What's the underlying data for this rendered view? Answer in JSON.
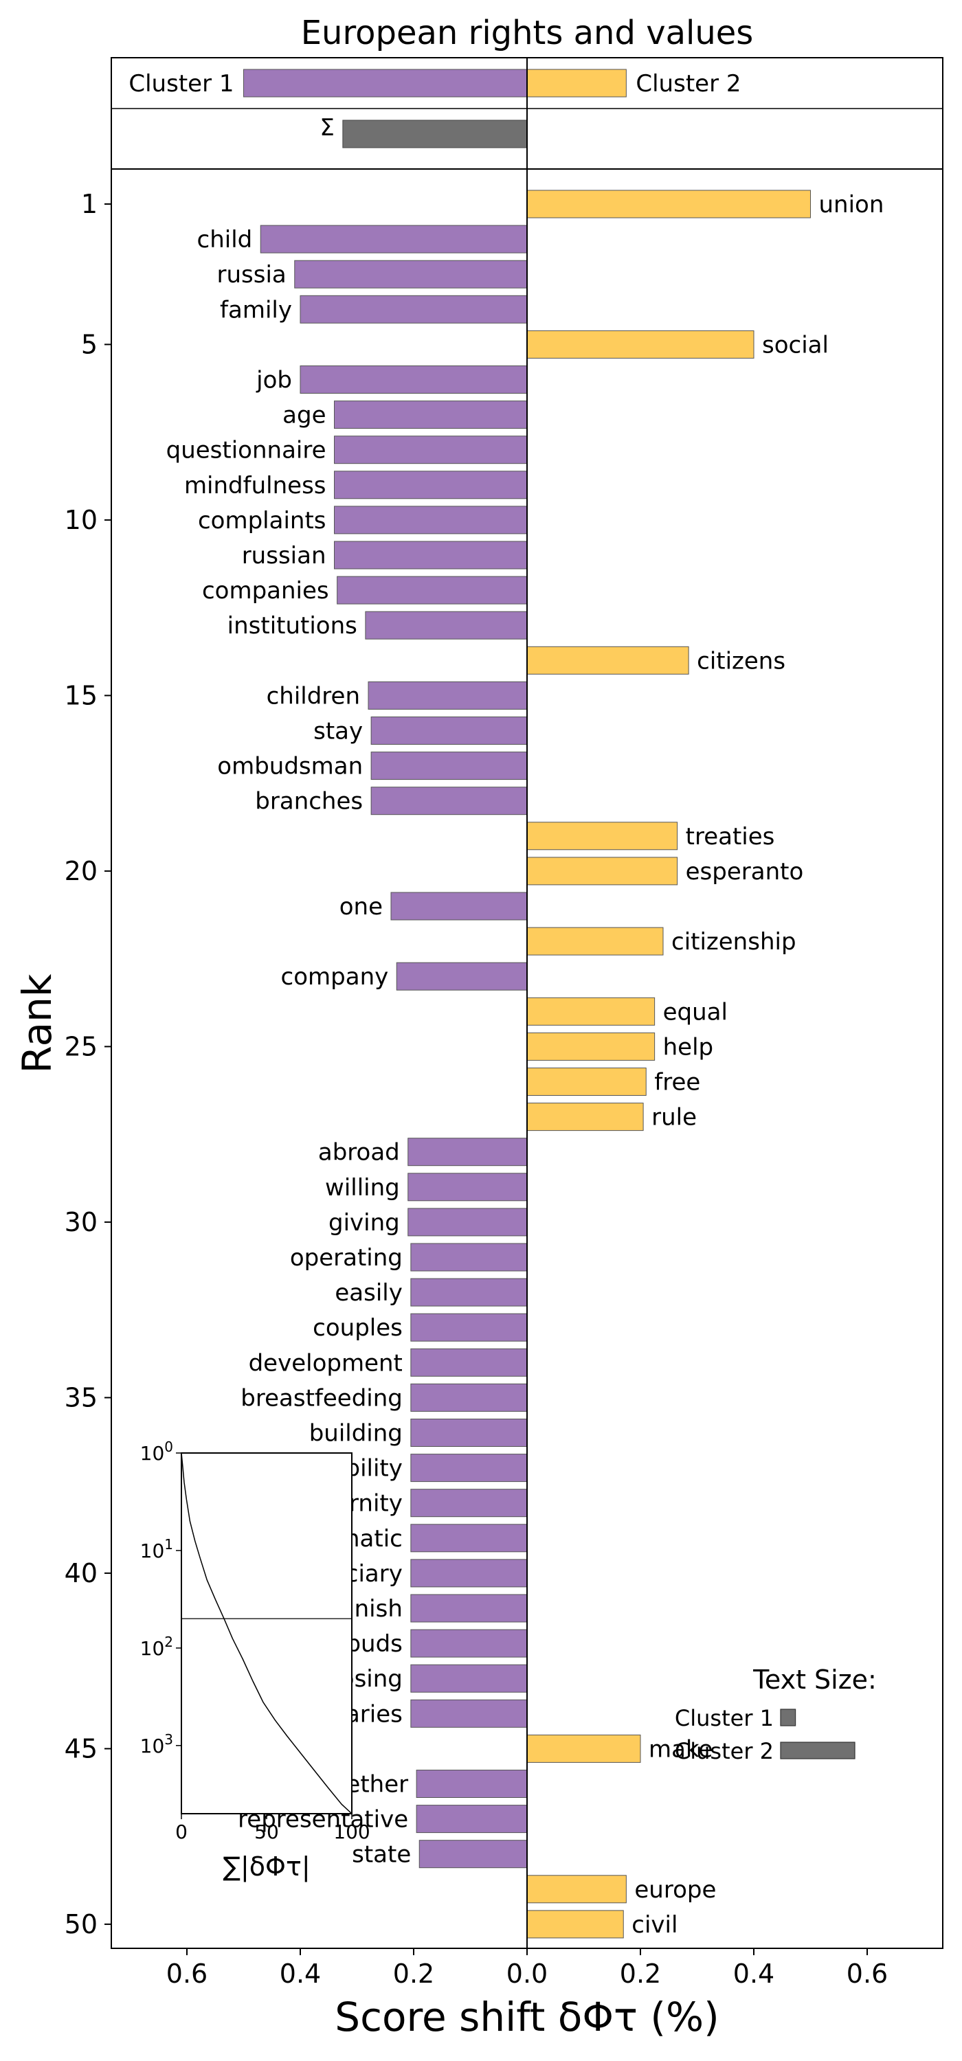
{
  "chart_data": {
    "type": "bar",
    "title": "European rights and values",
    "xlabel": "Score shift δΦτ (%)",
    "ylabel": "Rank",
    "xlim": [
      -0.7,
      0.7
    ],
    "xtick_labels": [
      "0.6",
      "0.4",
      "0.2",
      "0.0",
      "0.2",
      "0.4",
      "0.6"
    ],
    "xtick_values": [
      -0.6,
      -0.4,
      -0.2,
      0.0,
      0.2,
      0.4,
      0.6
    ],
    "ytick_labels": [
      "1",
      "5",
      "10",
      "15",
      "20",
      "25",
      "30",
      "35",
      "40",
      "45",
      "50"
    ],
    "summary": {
      "cluster1_label": "Cluster 1",
      "cluster2_label": "Cluster 2",
      "cluster1_value": -0.5,
      "cluster2_value": 0.175,
      "sigma_label": "Σ",
      "sigma_value": -0.325
    },
    "colors": {
      "cluster1": "#9e79b9",
      "cluster2": "#fecc5c",
      "sigma": "#707070"
    },
    "bars": [
      {
        "rank": 1,
        "word": "union",
        "value": 0.5
      },
      {
        "rank": 2,
        "word": "child",
        "value": -0.47
      },
      {
        "rank": 3,
        "word": "russia",
        "value": -0.41
      },
      {
        "rank": 4,
        "word": "family",
        "value": -0.4
      },
      {
        "rank": 5,
        "word": "social",
        "value": 0.4
      },
      {
        "rank": 6,
        "word": "job",
        "value": -0.4
      },
      {
        "rank": 7,
        "word": "age",
        "value": -0.34
      },
      {
        "rank": 8,
        "word": "questionnaire",
        "value": -0.34
      },
      {
        "rank": 9,
        "word": "mindfulness",
        "value": -0.34
      },
      {
        "rank": 10,
        "word": "complaints",
        "value": -0.34
      },
      {
        "rank": 11,
        "word": "russian",
        "value": -0.34
      },
      {
        "rank": 12,
        "word": "companies",
        "value": -0.335
      },
      {
        "rank": 13,
        "word": "institutions",
        "value": -0.285
      },
      {
        "rank": 14,
        "word": "citizens",
        "value": 0.285
      },
      {
        "rank": 15,
        "word": "children",
        "value": -0.28
      },
      {
        "rank": 16,
        "word": "stay",
        "value": -0.275
      },
      {
        "rank": 17,
        "word": "ombudsman",
        "value": -0.275
      },
      {
        "rank": 18,
        "word": "branches",
        "value": -0.275
      },
      {
        "rank": 19,
        "word": "treaties",
        "value": 0.265
      },
      {
        "rank": 20,
        "word": "esperanto",
        "value": 0.265
      },
      {
        "rank": 21,
        "word": "one",
        "value": -0.24
      },
      {
        "rank": 22,
        "word": "citizenship",
        "value": 0.24
      },
      {
        "rank": 23,
        "word": "company",
        "value": -0.23
      },
      {
        "rank": 24,
        "word": "equal",
        "value": 0.225
      },
      {
        "rank": 25,
        "word": "help",
        "value": 0.225
      },
      {
        "rank": 26,
        "word": "free",
        "value": 0.21
      },
      {
        "rank": 27,
        "word": "rule",
        "value": 0.205
      },
      {
        "rank": 28,
        "word": "abroad",
        "value": -0.21
      },
      {
        "rank": 29,
        "word": "willing",
        "value": -0.21
      },
      {
        "rank": 30,
        "word": "giving",
        "value": -0.21
      },
      {
        "rank": 31,
        "word": "operating",
        "value": -0.205
      },
      {
        "rank": 32,
        "word": "easily",
        "value": -0.205
      },
      {
        "rank": 33,
        "word": "couples",
        "value": -0.205
      },
      {
        "rank": 34,
        "word": "development",
        "value": -0.205
      },
      {
        "rank": 35,
        "word": "breastfeeding",
        "value": -0.205
      },
      {
        "rank": 36,
        "word": "building",
        "value": -0.205
      },
      {
        "rank": 37,
        "word": "responsibility",
        "value": -0.205
      },
      {
        "rank": 38,
        "word": "maternity",
        "value": -0.205
      },
      {
        "rank": 39,
        "word": "diplomatic",
        "value": -0.205
      },
      {
        "rank": 40,
        "word": "judiciary",
        "value": -0.205
      },
      {
        "rank": 41,
        "word": "finnish",
        "value": -0.205
      },
      {
        "rank": 42,
        "word": "ombuds",
        "value": -0.205
      },
      {
        "rank": 43,
        "word": "loosing",
        "value": -0.205
      },
      {
        "rank": 44,
        "word": "judiciaries",
        "value": -0.205
      },
      {
        "rank": 45,
        "word": "make",
        "value": 0.2
      },
      {
        "rank": 46,
        "word": "together",
        "value": -0.195
      },
      {
        "rank": 47,
        "word": "representative",
        "value": -0.195
      },
      {
        "rank": 48,
        "word": "state",
        "value": -0.19
      },
      {
        "rank": 49,
        "word": "europe",
        "value": 0.175
      },
      {
        "rank": 50,
        "word": "civil",
        "value": 0.17
      }
    ],
    "inset": {
      "xlabel": "∑|δΦτ|",
      "xtick_labels": [
        "0",
        "50",
        "100"
      ],
      "xtick_values": [
        0,
        50,
        100
      ],
      "yticks": [
        {
          "base": "10",
          "exp": "0"
        },
        {
          "base": "10",
          "exp": "1"
        },
        {
          "base": "10",
          "exp": "2"
        },
        {
          "base": "10",
          "exp": "3"
        }
      ],
      "hline_rank": 50,
      "curve": [
        [
          0,
          1
        ],
        [
          0.8,
          1.4
        ],
        [
          1.6,
          2
        ],
        [
          3,
          3
        ],
        [
          5,
          5
        ],
        [
          8,
          8
        ],
        [
          11,
          12
        ],
        [
          15,
          20
        ],
        [
          20,
          32
        ],
        [
          25,
          50
        ],
        [
          30,
          80
        ],
        [
          36,
          130
        ],
        [
          42,
          220
        ],
        [
          48,
          360
        ],
        [
          55,
          550
        ],
        [
          62,
          800
        ],
        [
          70,
          1200
        ],
        [
          78,
          1800
        ],
        [
          86,
          2700
        ],
        [
          94,
          4000
        ],
        [
          100,
          5000
        ]
      ]
    },
    "legend": {
      "title": "Text Size:",
      "items": [
        {
          "label": "Cluster 1",
          "size": 0.2
        },
        {
          "label": "Cluster 2",
          "size": 1.0
        }
      ]
    }
  }
}
